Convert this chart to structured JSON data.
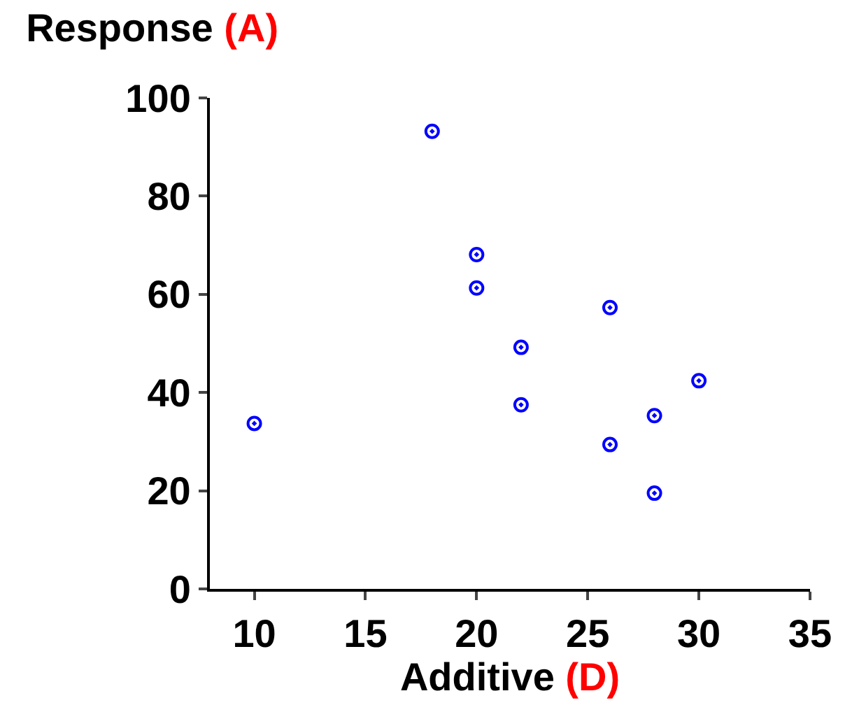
{
  "chart_data": {
    "type": "scatter",
    "title": "Response (A)",
    "xlabel": "Additive (D)",
    "x": [
      10,
      18,
      20,
      20,
      22,
      22,
      26,
      26,
      28,
      28,
      30
    ],
    "series": [
      {
        "color": "#0000ff",
        "values": [
          33.7,
          93.2,
          68.1,
          61.3,
          49.2,
          37.5,
          57.3,
          29.4,
          35.3,
          19.5,
          42.4
        ]
      }
    ],
    "xlim": [
      8,
      35
    ],
    "xticks": [
      10,
      15,
      20,
      25,
      30,
      35
    ],
    "ylim": [
      0,
      100
    ],
    "yticks": [
      0,
      20,
      40,
      60,
      80,
      100
    ],
    "marker": "circle",
    "legend": false
  }
}
